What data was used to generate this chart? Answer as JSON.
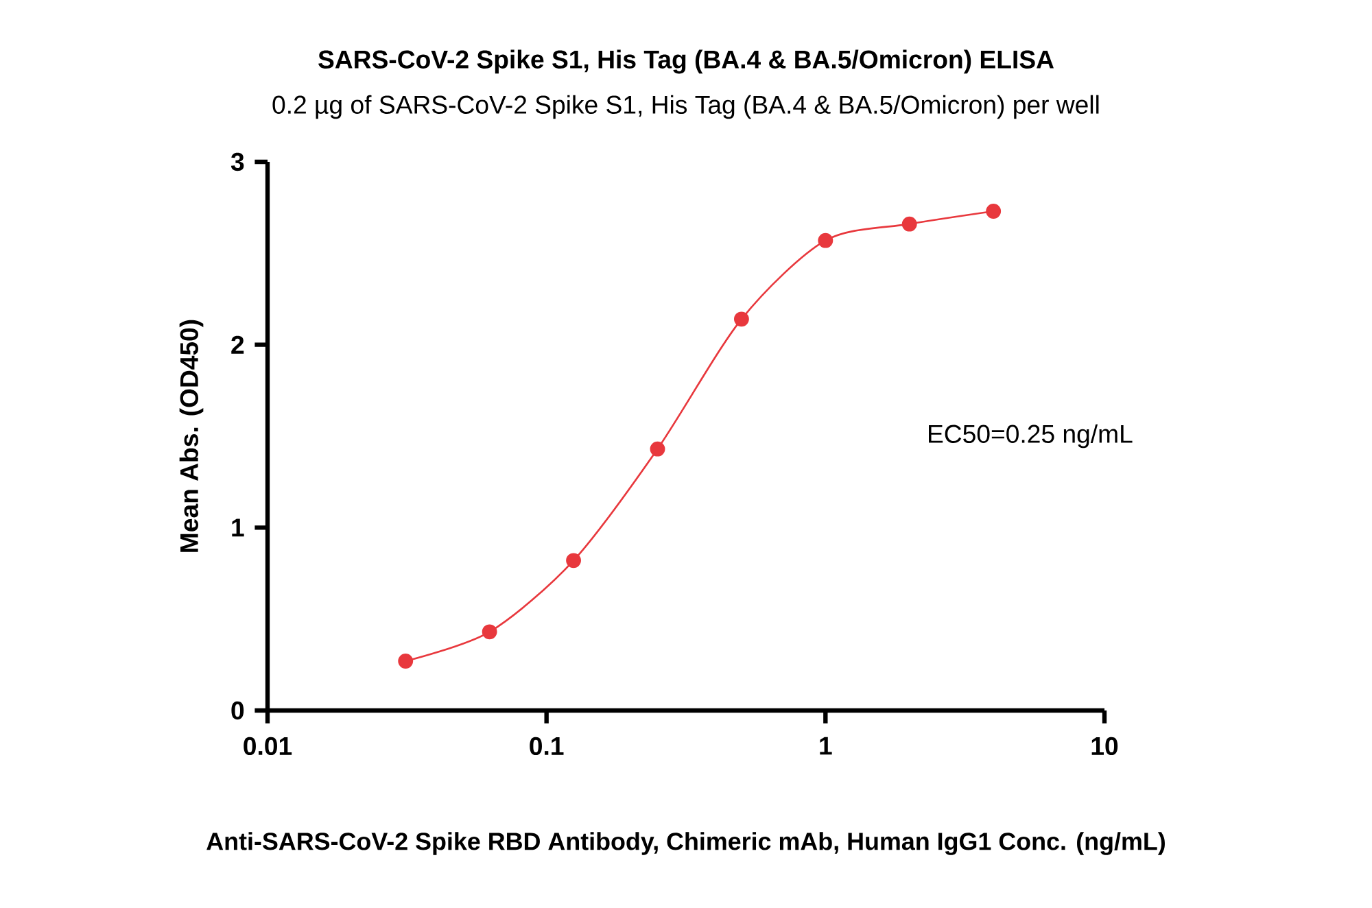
{
  "chart_data": {
    "type": "line",
    "title": "SARS-CoV-2 Spike S1, His Tag (BA.4 & BA.5/Omicron) ELISA",
    "subtitle": "0.2 µg of SARS-CoV-2 Spike S1, His Tag (BA.4 & BA.5/Omicron) per well",
    "xlabel": "Anti-SARS-CoV-2 Spike RBD Antibody, Chimeric mAb, Human IgG1 Conc. (ng/mL)",
    "ylabel": "Mean Abs. (OD450)",
    "annotations": [
      "EC50=0.25 ng/mL"
    ],
    "x": [
      0.03125,
      0.0625,
      0.125,
      0.25,
      0.5,
      1,
      2,
      4
    ],
    "values": [
      0.27,
      0.43,
      0.82,
      1.43,
      2.14,
      2.57,
      2.66,
      2.73
    ],
    "color": "#e8383d",
    "marker": "circle",
    "line_style": "solid",
    "log": "x",
    "xlim": [
      0.01,
      10
    ],
    "xticks": [
      0.01,
      0.1,
      1,
      10
    ],
    "ylim": [
      0,
      3
    ],
    "yticks": [
      0,
      1,
      2,
      3
    ]
  }
}
